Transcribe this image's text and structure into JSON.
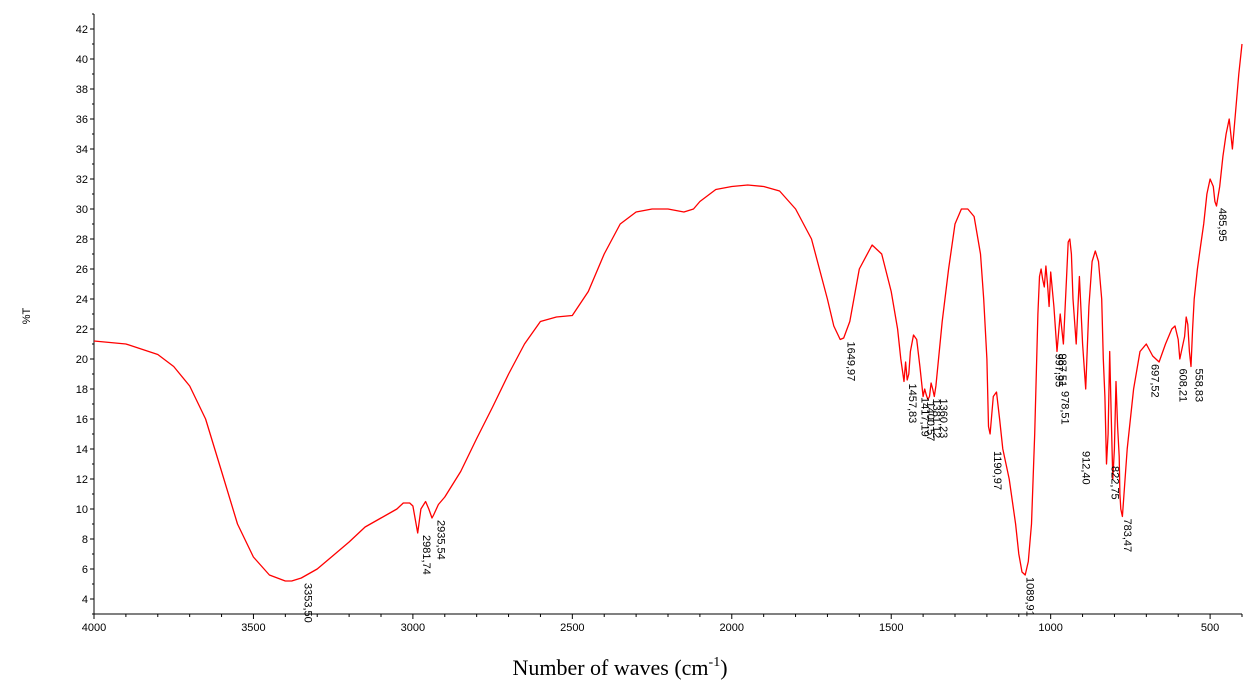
{
  "chart_data": {
    "type": "line",
    "title": "",
    "xlabel": "Number of waves (cm",
    "xlabel_sup": "-1",
    "xlabel_close": ")",
    "ylabel": "%T",
    "xlim": [
      4000,
      400
    ],
    "ylim": [
      3,
      43
    ],
    "x_ticks": [
      4000,
      3500,
      3000,
      2500,
      2000,
      1500,
      1000,
      500
    ],
    "y_ticks": [
      4,
      6,
      8,
      10,
      12,
      14,
      16,
      18,
      20,
      22,
      24,
      26,
      28,
      30,
      32,
      34,
      36,
      38,
      40,
      42
    ],
    "line_color": "#ff0000",
    "series": [
      {
        "x": [
          4000,
          3900,
          3800,
          3750,
          3700,
          3650,
          3600,
          3550,
          3500,
          3450,
          3400,
          3380,
          3350,
          3300,
          3250,
          3200,
          3150,
          3100,
          3050,
          3030,
          3010,
          3000,
          2990,
          2985,
          2975,
          2960,
          2950,
          2940,
          2935,
          2920,
          2900,
          2850,
          2800,
          2750,
          2700,
          2650,
          2600,
          2550,
          2500,
          2450,
          2400,
          2350,
          2300,
          2250,
          2200,
          2150,
          2120,
          2100,
          2050,
          2000,
          1950,
          1900,
          1850,
          1800,
          1750,
          1700,
          1680,
          1660,
          1649,
          1630,
          1600,
          1560,
          1530,
          1500,
          1480,
          1470,
          1460,
          1455,
          1450,
          1445,
          1440,
          1430,
          1420,
          1410,
          1400,
          1395,
          1390,
          1385,
          1380,
          1375,
          1370,
          1365,
          1360,
          1340,
          1320,
          1300,
          1280,
          1260,
          1240,
          1220,
          1210,
          1200,
          1195,
          1190,
          1180,
          1170,
          1160,
          1150,
          1130,
          1110,
          1100,
          1090,
          1080,
          1070,
          1060,
          1055,
          1050,
          1045,
          1040,
          1035,
          1030,
          1025,
          1020,
          1015,
          1010,
          1005,
          1000,
          990,
          980,
          970,
          960,
          950,
          945,
          940,
          935,
          930,
          920,
          910,
          900,
          890,
          880,
          870,
          860,
          850,
          840,
          835,
          830,
          825,
          820,
          815,
          810,
          805,
          800,
          795,
          790,
          785,
          783,
          780,
          775,
          770,
          760,
          740,
          720,
          700,
          680,
          660,
          640,
          620,
          610,
          600,
          595,
          590,
          585,
          580,
          575,
          570,
          565,
          560,
          555,
          550,
          540,
          530,
          520,
          510,
          500,
          490,
          485,
          480,
          470,
          460,
          450,
          440,
          430,
          420,
          410,
          400
        ],
        "y": [
          21.2,
          21.0,
          20.3,
          19.5,
          18.2,
          16.0,
          12.5,
          9.0,
          6.8,
          5.6,
          5.2,
          5.2,
          5.4,
          6.0,
          6.9,
          7.8,
          8.8,
          9.4,
          10.0,
          10.4,
          10.4,
          10.2,
          9.0,
          8.4,
          10.0,
          10.5,
          10.0,
          9.4,
          9.6,
          10.3,
          10.8,
          12.5,
          14.7,
          16.8,
          19.0,
          21.0,
          22.5,
          22.8,
          22.9,
          24.5,
          27.0,
          29.0,
          29.8,
          30.0,
          30.0,
          29.8,
          30.0,
          30.5,
          31.3,
          31.5,
          31.6,
          31.5,
          31.2,
          30.0,
          28.0,
          24.0,
          22.2,
          21.3,
          21.4,
          22.5,
          26.0,
          27.6,
          27.0,
          24.5,
          22.0,
          20.0,
          18.5,
          19.8,
          18.6,
          19.0,
          20.5,
          21.6,
          21.3,
          19.5,
          17.5,
          18.0,
          17.6,
          17.3,
          17.5,
          18.4,
          18.0,
          17.5,
          18.2,
          22.5,
          26.0,
          29.0,
          30.0,
          30.0,
          29.5,
          27.0,
          24.0,
          20.0,
          15.5,
          15.0,
          17.5,
          17.8,
          16.0,
          14.0,
          12.0,
          9.0,
          7.0,
          5.8,
          5.6,
          6.5,
          9.0,
          12.0,
          15.0,
          19.0,
          23.0,
          25.5,
          26.0,
          25.3,
          24.8,
          26.2,
          25.0,
          23.5,
          25.8,
          23.5,
          20.5,
          23.0,
          21.0,
          25.5,
          27.8,
          28.0,
          27.0,
          24.0,
          21.0,
          25.5,
          21.0,
          18.0,
          23.5,
          26.5,
          27.2,
          26.5,
          24.0,
          20.0,
          17.5,
          13.0,
          15.0,
          20.5,
          16.0,
          12.0,
          14.0,
          18.5,
          15.5,
          13.5,
          11.0,
          10.0,
          9.5,
          11.0,
          14.0,
          18.0,
          20.5,
          21.0,
          20.2,
          19.8,
          21.0,
          22.0,
          22.2,
          21.3,
          20.0,
          20.5,
          21.0,
          21.5,
          22.8,
          22.3,
          20.5,
          19.5,
          22.0,
          24.0,
          26.0,
          27.5,
          29.0,
          31.0,
          32.0,
          31.5,
          30.5,
          30.2,
          31.5,
          33.5,
          35.0,
          36.0,
          34.0,
          36.5,
          39.0,
          41.0
        ]
      }
    ],
    "peak_labels": [
      {
        "x": 3353,
        "y": 5.2,
        "text": "3353,50"
      },
      {
        "x": 2981,
        "y": 8.4,
        "text": "2981,74"
      },
      {
        "x": 2935,
        "y": 9.4,
        "text": "2935,54"
      },
      {
        "x": 1649,
        "y": 21.3,
        "text": "1649,97"
      },
      {
        "x": 1457,
        "y": 18.5,
        "text": "1457,83"
      },
      {
        "x": 1417,
        "y": 17.6,
        "text": "1417,19"
      },
      {
        "x": 1400,
        "y": 17.3,
        "text": "1400,57"
      },
      {
        "x": 1381,
        "y": 17.5,
        "text": "1381,12"
      },
      {
        "x": 1360,
        "y": 17.5,
        "text": "1360,23"
      },
      {
        "x": 1190,
        "y": 14.0,
        "text": "1190,97"
      },
      {
        "x": 1089,
        "y": 5.6,
        "text": "1089,91"
      },
      {
        "x": 997,
        "y": 20.5,
        "text": "997,95"
      },
      {
        "x": 987,
        "y": 20.5,
        "text": "987,51"
      },
      {
        "x": 978,
        "y": 18.0,
        "text": "978,51"
      },
      {
        "x": 912,
        "y": 14.0,
        "text": "912,40"
      },
      {
        "x": 822,
        "y": 13.0,
        "text": "822,75"
      },
      {
        "x": 783,
        "y": 9.5,
        "text": "783,47"
      },
      {
        "x": 697,
        "y": 19.8,
        "text": "697,52"
      },
      {
        "x": 608,
        "y": 19.5,
        "text": "608,21"
      },
      {
        "x": 558,
        "y": 19.5,
        "text": "558,83"
      },
      {
        "x": 485,
        "y": 30.2,
        "text": "485,95"
      }
    ]
  }
}
